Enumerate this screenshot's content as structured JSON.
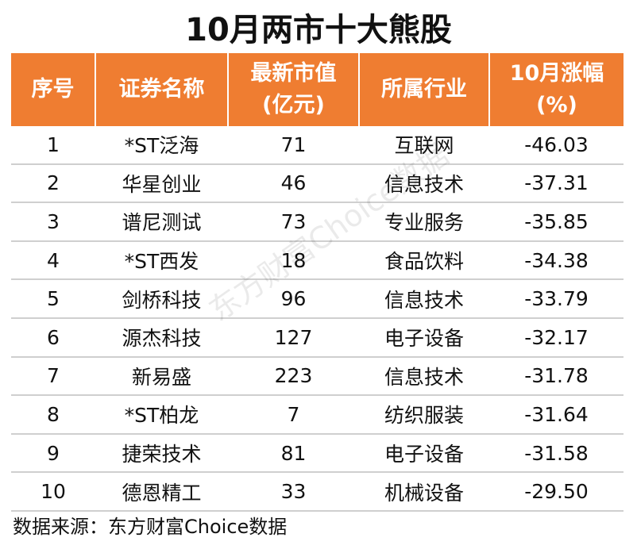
{
  "title": "10月两市十大熊股",
  "headers": {
    "rank": "序号",
    "name": "证券名称",
    "cap_line1": "最新市值",
    "cap_line2": "(亿元)",
    "industry": "所属行业",
    "change_line1": "10月涨幅",
    "change_line2": "(%)"
  },
  "rows": [
    {
      "rank": "1",
      "name": "*ST泛海",
      "cap": "71",
      "industry": "互联网",
      "change": "-46.03"
    },
    {
      "rank": "2",
      "name": "华星创业",
      "cap": "46",
      "industry": "信息技术",
      "change": "-37.31"
    },
    {
      "rank": "3",
      "name": "谱尼测试",
      "cap": "73",
      "industry": "专业服务",
      "change": "-35.85"
    },
    {
      "rank": "4",
      "name": "*ST西发",
      "cap": "18",
      "industry": "食品饮料",
      "change": "-34.38"
    },
    {
      "rank": "5",
      "name": "剑桥科技",
      "cap": "96",
      "industry": "信息技术",
      "change": "-33.79"
    },
    {
      "rank": "6",
      "name": "源杰科技",
      "cap": "127",
      "industry": "电子设备",
      "change": "-32.17"
    },
    {
      "rank": "7",
      "name": "新易盛",
      "cap": "223",
      "industry": "信息技术",
      "change": "-31.78"
    },
    {
      "rank": "8",
      "name": "*ST柏龙",
      "cap": "7",
      "industry": "纺织服装",
      "change": "-31.64"
    },
    {
      "rank": "9",
      "name": "捷荣技术",
      "cap": "81",
      "industry": "电子设备",
      "change": "-31.58"
    },
    {
      "rank": "10",
      "name": "德恩精工",
      "cap": "33",
      "industry": "机械设备",
      "change": "-29.50"
    }
  ],
  "source": "数据来源：东方财富Choice数据",
  "watermark": "东方财富Choice数据",
  "colors": {
    "header_bg": "#ef7d31",
    "header_text": "#ffffff",
    "row_divider": "#cfcfcf"
  }
}
